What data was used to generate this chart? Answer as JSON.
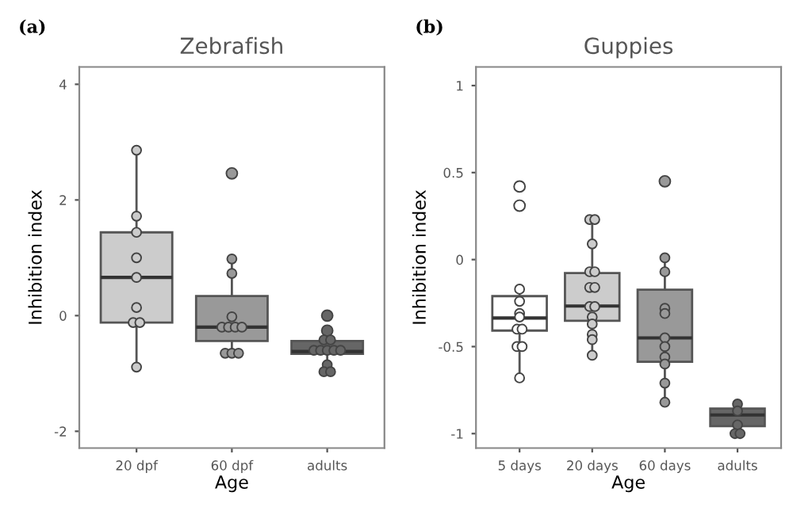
{
  "chart_data": [
    {
      "type": "box",
      "title": "Zebrafish",
      "xlabel": "Age",
      "ylabel": "Inhibition index",
      "annotations": [
        "(a)"
      ],
      "categories": [
        "20 dpf",
        "60 dpf",
        "adults"
      ],
      "colors": [
        "#cccccc",
        "#999999",
        "#666666"
      ],
      "boxes": [
        {
          "low": -0.89,
          "q1": -0.12,
          "median": 0.66,
          "q3": 1.44,
          "high": 2.86
        },
        {
          "low": -0.65,
          "q1": -0.44,
          "median": -0.2,
          "q3": 0.34,
          "high": 0.98,
          "outliers": [
            2.46
          ]
        },
        {
          "low": -0.97,
          "q1": -0.66,
          "median": -0.62,
          "q3": -0.44,
          "high": -0.42,
          "outliers": [
            0,
            -0.26
          ]
        }
      ],
      "series": [
        {
          "type": "scatter",
          "x": [
            "20 dpf",
            "20 dpf",
            "20 dpf",
            "20 dpf",
            "20 dpf",
            "20 dpf",
            "20 dpf",
            "20 dpf",
            "20 dpf",
            "60 dpf",
            "60 dpf",
            "60 dpf",
            "60 dpf",
            "60 dpf",
            "60 dpf",
            "60 dpf",
            "60 dpf",
            "60 dpf",
            "60 dpf",
            "adults",
            "adults",
            "adults",
            "adults",
            "adults",
            "adults",
            "adults",
            "adults",
            "adults",
            "adults"
          ],
          "values": [
            2.86,
            1.72,
            1.44,
            1.0,
            0.66,
            0.14,
            -0.12,
            -0.12,
            -0.89,
            0.98,
            0.73,
            -0.02,
            -0.2,
            -0.2,
            -0.2,
            -0.2,
            -0.65,
            -0.65,
            -0.65,
            -0.42,
            -0.42,
            -0.6,
            -0.6,
            -0.6,
            -0.6,
            -0.6,
            -0.85,
            -0.97,
            -0.97
          ],
          "colors": [
            "#cccccc",
            "#cccccc",
            "#cccccc",
            "#cccccc",
            "#cccccc",
            "#cccccc",
            "#cccccc",
            "#cccccc",
            "#cccccc",
            "#999999",
            "#999999",
            "#999999",
            "#999999",
            "#999999",
            "#999999",
            "#999999",
            "#999999",
            "#999999",
            "#999999",
            "#666666",
            "#666666",
            "#666666",
            "#666666",
            "#666666",
            "#666666",
            "#666666",
            "#666666",
            "#666666",
            "#666666"
          ]
        }
      ],
      "ylim": [
        -2.29,
        4.3
      ],
      "yticks": [
        -2,
        0,
        2,
        4
      ]
    },
    {
      "type": "box",
      "title": "Guppies",
      "xlabel": "Age",
      "ylabel": "Inhibition index",
      "annotations": [
        "(b)"
      ],
      "categories": [
        "5 days",
        "20 days",
        "60 days",
        "adults"
      ],
      "colors": [
        "#ffffff",
        "#cccccc",
        "#999999",
        "#666666"
      ],
      "boxes": [
        {
          "low": -0.68,
          "q1": -0.408,
          "median": -0.336,
          "q3": -0.21,
          "high": -0.17,
          "outliers": [
            0.42,
            0.31
          ]
        },
        {
          "low": -0.555,
          "q1": -0.352,
          "median": -0.267,
          "q3": -0.077,
          "high": 0.232
        },
        {
          "low": -0.82,
          "q1": -0.587,
          "median": -0.45,
          "q3": -0.173,
          "high": 0.013,
          "outliers": [
            0.45
          ]
        },
        {
          "low": -1.0,
          "q1": -0.957,
          "median": -0.893,
          "q3": -0.856,
          "high": -0.83
        }
      ],
      "series": [
        {
          "type": "scatter",
          "x": [
            "5 days",
            "5 days",
            "5 days",
            "5 days",
            "5 days",
            "5 days",
            "5 days",
            "5 days",
            "5 days",
            "20 days",
            "20 days",
            "20 days",
            "20 days",
            "20 days",
            "20 days",
            "20 days",
            "20 days",
            "20 days",
            "20 days",
            "20 days",
            "20 days",
            "20 days",
            "20 days",
            "60 days",
            "60 days",
            "60 days",
            "60 days",
            "60 days",
            "60 days",
            "60 days",
            "60 days",
            "60 days",
            "60 days",
            "adults",
            "adults",
            "adults",
            "adults",
            "adults"
          ],
          "values": [
            -0.17,
            -0.24,
            -0.31,
            -0.33,
            -0.4,
            -0.4,
            -0.5,
            -0.5,
            -0.68,
            0.23,
            0.23,
            0.09,
            -0.07,
            -0.07,
            -0.16,
            -0.16,
            -0.27,
            -0.27,
            -0.33,
            -0.37,
            -0.43,
            -0.46,
            -0.55,
            0.01,
            -0.07,
            -0.28,
            -0.31,
            -0.45,
            -0.5,
            -0.56,
            -0.6,
            -0.71,
            -0.82,
            -0.83,
            -0.87,
            -0.95,
            -1.0,
            -1.0
          ],
          "colors": [
            "#ffffff",
            "#ffffff",
            "#ffffff",
            "#ffffff",
            "#ffffff",
            "#ffffff",
            "#ffffff",
            "#ffffff",
            "#ffffff",
            "#cccccc",
            "#cccccc",
            "#cccccc",
            "#cccccc",
            "#cccccc",
            "#cccccc",
            "#cccccc",
            "#cccccc",
            "#cccccc",
            "#cccccc",
            "#cccccc",
            "#cccccc",
            "#cccccc",
            "#cccccc",
            "#999999",
            "#999999",
            "#999999",
            "#999999",
            "#999999",
            "#999999",
            "#999999",
            "#999999",
            "#999999",
            "#999999",
            "#666666",
            "#666666",
            "#666666",
            "#666666",
            "#666666"
          ]
        }
      ],
      "ylim": [
        -1.083,
        1.107
      ],
      "yticks": [
        -1,
        -0.5,
        0,
        0.5,
        1
      ]
    }
  ]
}
